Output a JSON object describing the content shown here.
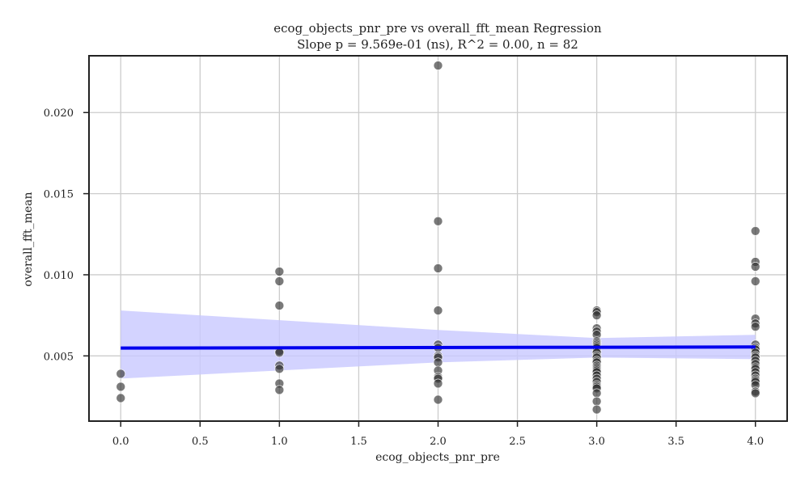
{
  "chart_data": {
    "type": "scatter",
    "title": "ecog_objects_pnr_pre vs overall_fft_mean Regression",
    "subtitle": "Slope p = 9.569e-01 (ns), R^2 = 0.00, n = 82",
    "xlabel": "ecog_objects_pnr_pre",
    "ylabel": "overall_fft_mean",
    "xlim": [
      -0.2,
      4.2
    ],
    "ylim": [
      0.00098,
      0.0235
    ],
    "xticks": [
      0.0,
      0.5,
      1.0,
      1.5,
      2.0,
      2.5,
      3.0,
      3.5,
      4.0
    ],
    "xtick_labels": [
      "0.0",
      "0.5",
      "1.0",
      "1.5",
      "2.0",
      "2.5",
      "3.0",
      "3.5",
      "4.0"
    ],
    "yticks": [
      0.005,
      0.01,
      0.015,
      0.02
    ],
    "ytick_labels": [
      "0.005",
      "0.010",
      "0.015",
      "0.020"
    ],
    "grid": true,
    "colors": {
      "points": "#333333",
      "regression_line": "#0000ee",
      "confidence_band": "#c8c8ff"
    },
    "points": [
      {
        "x": 0,
        "y": 0.0039
      },
      {
        "x": 0,
        "y": 0.0031
      },
      {
        "x": 0,
        "y": 0.0024
      },
      {
        "x": 1,
        "y": 0.0102
      },
      {
        "x": 1,
        "y": 0.0096
      },
      {
        "x": 1,
        "y": 0.0081
      },
      {
        "x": 1,
        "y": 0.0053
      },
      {
        "x": 1,
        "y": 0.0052
      },
      {
        "x": 1,
        "y": 0.0044
      },
      {
        "x": 1,
        "y": 0.0042
      },
      {
        "x": 1,
        "y": 0.0033
      },
      {
        "x": 1,
        "y": 0.0029
      },
      {
        "x": 2,
        "y": 0.0229
      },
      {
        "x": 2,
        "y": 0.0133
      },
      {
        "x": 2,
        "y": 0.0104
      },
      {
        "x": 2,
        "y": 0.0078
      },
      {
        "x": 2,
        "y": 0.0057
      },
      {
        "x": 2,
        "y": 0.0055
      },
      {
        "x": 2,
        "y": 0.005
      },
      {
        "x": 2,
        "y": 0.0049
      },
      {
        "x": 2,
        "y": 0.0046
      },
      {
        "x": 2,
        "y": 0.0041
      },
      {
        "x": 2,
        "y": 0.0037
      },
      {
        "x": 2,
        "y": 0.0036
      },
      {
        "x": 2,
        "y": 0.0033
      },
      {
        "x": 2,
        "y": 0.0023
      },
      {
        "x": 3,
        "y": 0.0078
      },
      {
        "x": 3,
        "y": 0.0077
      },
      {
        "x": 3,
        "y": 0.0075
      },
      {
        "x": 3,
        "y": 0.0067
      },
      {
        "x": 3,
        "y": 0.0065
      },
      {
        "x": 3,
        "y": 0.0063
      },
      {
        "x": 3,
        "y": 0.0059
      },
      {
        "x": 3,
        "y": 0.0058
      },
      {
        "x": 3,
        "y": 0.0057
      },
      {
        "x": 3,
        "y": 0.0056
      },
      {
        "x": 3,
        "y": 0.0055
      },
      {
        "x": 3,
        "y": 0.0053
      },
      {
        "x": 3,
        "y": 0.0052
      },
      {
        "x": 3,
        "y": 0.005
      },
      {
        "x": 3,
        "y": 0.0049
      },
      {
        "x": 3,
        "y": 0.0047
      },
      {
        "x": 3,
        "y": 0.0046
      },
      {
        "x": 3,
        "y": 0.0044
      },
      {
        "x": 3,
        "y": 0.0043
      },
      {
        "x": 3,
        "y": 0.0042
      },
      {
        "x": 3,
        "y": 0.0041
      },
      {
        "x": 3,
        "y": 0.004
      },
      {
        "x": 3,
        "y": 0.0038
      },
      {
        "x": 3,
        "y": 0.0036
      },
      {
        "x": 3,
        "y": 0.0034
      },
      {
        "x": 3,
        "y": 0.0032
      },
      {
        "x": 3,
        "y": 0.0031
      },
      {
        "x": 3,
        "y": 0.003
      },
      {
        "x": 3,
        "y": 0.0027
      },
      {
        "x": 3,
        "y": 0.0022
      },
      {
        "x": 3,
        "y": 0.0017
      },
      {
        "x": 4,
        "y": 0.0127
      },
      {
        "x": 4,
        "y": 0.0108
      },
      {
        "x": 4,
        "y": 0.0105
      },
      {
        "x": 4,
        "y": 0.0096
      },
      {
        "x": 4,
        "y": 0.0073
      },
      {
        "x": 4,
        "y": 0.007
      },
      {
        "x": 4,
        "y": 0.0068
      },
      {
        "x": 4,
        "y": 0.0057
      },
      {
        "x": 4,
        "y": 0.0055
      },
      {
        "x": 4,
        "y": 0.0054
      },
      {
        "x": 4,
        "y": 0.0052
      },
      {
        "x": 4,
        "y": 0.005
      },
      {
        "x": 4,
        "y": 0.0049
      },
      {
        "x": 4,
        "y": 0.0047
      },
      {
        "x": 4,
        "y": 0.0045
      },
      {
        "x": 4,
        "y": 0.0043
      },
      {
        "x": 4,
        "y": 0.0042
      },
      {
        "x": 4,
        "y": 0.004
      },
      {
        "x": 4,
        "y": 0.0038
      },
      {
        "x": 4,
        "y": 0.0036
      },
      {
        "x": 4,
        "y": 0.0035
      },
      {
        "x": 4,
        "y": 0.0034
      },
      {
        "x": 4,
        "y": 0.0032
      },
      {
        "x": 4,
        "y": 0.0028
      },
      {
        "x": 4,
        "y": 0.0027
      }
    ],
    "regression": {
      "x": [
        0,
        4
      ],
      "y": [
        0.00548,
        0.00555
      ]
    },
    "confidence_band": {
      "x": [
        0,
        1,
        2,
        3,
        4
      ],
      "lower": [
        0.0036,
        0.0041,
        0.0046,
        0.0049,
        0.0048
      ],
      "upper": [
        0.0078,
        0.0072,
        0.0066,
        0.0061,
        0.0063
      ]
    }
  }
}
